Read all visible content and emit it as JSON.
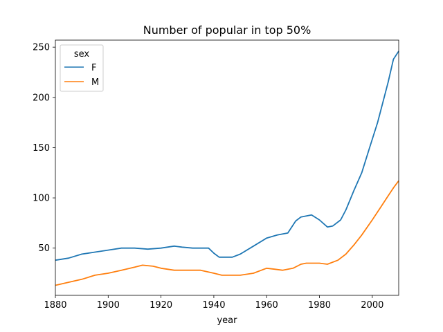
{
  "chart_data": {
    "type": "line",
    "title": "Number of popular in top 50%",
    "xlabel": "year",
    "ylabel": "",
    "xlim": [
      1880,
      2010
    ],
    "ylim": [
      3,
      257
    ],
    "xticks": [
      1880,
      1900,
      1920,
      1940,
      1960,
      1980,
      2000
    ],
    "yticks": [
      50,
      100,
      150,
      200,
      250
    ],
    "grid": false,
    "legend": {
      "title": "sex",
      "placement": "top-left"
    },
    "series": [
      {
        "name": "F",
        "color": "#1f77b4",
        "x": [
          1880,
          1885,
          1890,
          1895,
          1900,
          1905,
          1910,
          1915,
          1920,
          1925,
          1928,
          1932,
          1935,
          1938,
          1940,
          1942,
          1944,
          1947,
          1950,
          1955,
          1960,
          1964,
          1968,
          1971,
          1973,
          1975,
          1977,
          1980,
          1983,
          1985,
          1988,
          1990,
          1993,
          1996,
          1999,
          2002,
          2004,
          2006,
          2008,
          2010
        ],
        "y": [
          38,
          40,
          44,
          46,
          48,
          50,
          50,
          49,
          50,
          52,
          51,
          50,
          50,
          50,
          45,
          41,
          41,
          41,
          44,
          52,
          60,
          63,
          65,
          77,
          81,
          82,
          83,
          78,
          71,
          72,
          78,
          88,
          107,
          125,
          150,
          175,
          195,
          215,
          238,
          246
        ]
      },
      {
        "name": "M",
        "color": "#ff7f0e",
        "x": [
          1880,
          1885,
          1890,
          1895,
          1900,
          1905,
          1910,
          1913,
          1917,
          1920,
          1925,
          1930,
          1935,
          1940,
          1943,
          1946,
          1950,
          1955,
          1958,
          1960,
          1963,
          1966,
          1970,
          1973,
          1975,
          1980,
          1983,
          1987,
          1990,
          1993,
          1996,
          2000,
          2003,
          2006,
          2008,
          2010
        ],
        "y": [
          13,
          16,
          19,
          23,
          25,
          28,
          31,
          33,
          32,
          30,
          28,
          28,
          28,
          25,
          23,
          23,
          23,
          25,
          28,
          30,
          29,
          28,
          30,
          34,
          35,
          35,
          34,
          38,
          44,
          53,
          63,
          78,
          90,
          102,
          110,
          117
        ]
      }
    ]
  }
}
